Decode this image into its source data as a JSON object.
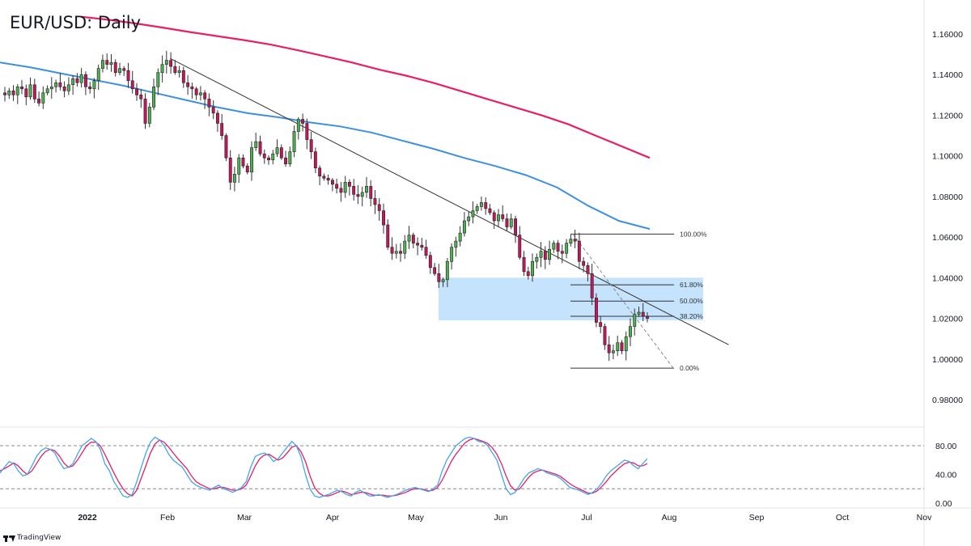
{
  "header": {
    "title": "EUR/USD: Daily"
  },
  "footer": {
    "brand": "TradingView"
  },
  "colors": {
    "bull": "#4caf50",
    "bear": "#c2185b",
    "ma_fast": "#3d8fe0",
    "ma_slow": "#e91e63",
    "zone": "#bbdefb",
    "stoch_k": "#42a5f5",
    "stoch_d": "#e91e63",
    "trendline": "#333333"
  },
  "chart_data": {
    "type": "candlestick",
    "symbol": "EUR/USD",
    "timeframe": "Daily",
    "ylim": [
      0.9775,
      1.1685
    ],
    "price_axis_ticks": [
      "1.16000",
      "1.14000",
      "1.12000",
      "1.10000",
      "1.08000",
      "1.06000",
      "1.04000",
      "1.02000",
      "1.00000",
      "0.98000"
    ],
    "x_axis_labels": [
      "2022",
      "Feb",
      "Mar",
      "Apr",
      "May",
      "Jun",
      "Jul",
      "Aug",
      "Sep",
      "Oct",
      "Nov"
    ],
    "closes": [
      1.13,
      1.132,
      1.13,
      1.134,
      1.133,
      1.129,
      1.135,
      1.128,
      1.126,
      1.131,
      1.133,
      1.134,
      1.136,
      1.134,
      1.132,
      1.135,
      1.138,
      1.136,
      1.14,
      1.134,
      1.133,
      1.137,
      1.143,
      1.147,
      1.145,
      1.146,
      1.141,
      1.143,
      1.142,
      1.137,
      1.133,
      1.13,
      1.128,
      1.116,
      1.124,
      1.134,
      1.141,
      1.145,
      1.147,
      1.144,
      1.141,
      1.142,
      1.136,
      1.134,
      1.133,
      1.13,
      1.131,
      1.128,
      1.124,
      1.121,
      1.116,
      1.11,
      1.099,
      1.087,
      1.091,
      1.099,
      1.095,
      1.092,
      1.104,
      1.107,
      1.101,
      1.099,
      1.098,
      1.101,
      1.104,
      1.099,
      1.096,
      1.102,
      1.112,
      1.118,
      1.116,
      1.108,
      1.102,
      1.094,
      1.09,
      1.089,
      1.088,
      1.086,
      1.084,
      1.082,
      1.087,
      1.085,
      1.081,
      1.08,
      1.082,
      1.085,
      1.079,
      1.076,
      1.073,
      1.066,
      1.055,
      1.052,
      1.053,
      1.052,
      1.058,
      1.061,
      1.057,
      1.056,
      1.055,
      1.051,
      1.045,
      1.042,
      1.038,
      1.039,
      1.048,
      1.055,
      1.058,
      1.062,
      1.068,
      1.07,
      1.073,
      1.075,
      1.077,
      1.074,
      1.072,
      1.068,
      1.071,
      1.069,
      1.065,
      1.069,
      1.061,
      1.05,
      1.043,
      1.041,
      1.048,
      1.05,
      1.053,
      1.049,
      1.054,
      1.057,
      1.053,
      1.052,
      1.057,
      1.059,
      1.058,
      1.048,
      1.046,
      1.042,
      1.03,
      1.018,
      1.016,
      1.007,
      1.003,
      1.004,
      1.008,
      1.004,
      1.011,
      1.016,
      1.022,
      1.023,
      1.021,
      1.02
    ],
    "ma_fast": {
      "name": "",
      "values": [
        1.146,
        1.1435,
        1.1405,
        1.1375,
        1.1345,
        1.131,
        1.1275,
        1.124,
        1.121,
        1.119,
        1.1165,
        1.1145,
        1.1115,
        1.1075,
        1.1035,
        1.099,
        1.095,
        1.0905,
        1.0845,
        1.0755,
        1.068,
        1.064
      ]
    },
    "ma_slow": {
      "name": "",
      "values": [
        1.1685,
        1.167,
        1.1652,
        1.1632,
        1.161,
        1.159,
        1.157,
        1.1548,
        1.152,
        1.149,
        1.146,
        1.1425,
        1.1395,
        1.136,
        1.132,
        1.128,
        1.124,
        1.12,
        1.1155,
        1.11,
        1.1045,
        1.099
      ]
    },
    "trendline": {
      "from": {
        "x_label": "Feb",
        "offset_days": 1,
        "y": 1.148
      },
      "to": {
        "x_label": "Aug",
        "offset_days": 23,
        "y": 1.007
      }
    },
    "demand_zone": {
      "ymin": 1.019,
      "ymax": 1.04
    },
    "fibonacci": {
      "levels": [
        {
          "label": "100.00%",
          "value": 1.0615
        },
        {
          "label": "61.80%",
          "value": 1.0365
        },
        {
          "label": "50.00%",
          "value": 1.0285
        },
        {
          "label": "38.20%",
          "value": 1.021
        },
        {
          "label": "0.00%",
          "value": 0.9955
        }
      ]
    },
    "stochastic": {
      "ticks": [
        "80.00",
        "40.00",
        "0.00"
      ],
      "overbought": 80,
      "oversold": 20,
      "k": [
        42,
        50,
        58,
        55,
        45,
        38,
        40,
        52,
        65,
        73,
        77,
        75,
        70,
        58,
        48,
        50,
        55,
        68,
        80,
        85,
        90,
        86,
        75,
        55,
        45,
        30,
        20,
        10,
        8,
        12,
        30,
        50,
        70,
        85,
        92,
        88,
        80,
        68,
        60,
        55,
        50,
        40,
        30,
        25,
        22,
        20,
        18,
        22,
        25,
        20,
        18,
        15,
        18,
        22,
        30,
        50,
        65,
        68,
        70,
        66,
        58,
        62,
        70,
        78,
        86,
        80,
        65,
        40,
        20,
        10,
        8,
        10,
        12,
        15,
        18,
        16,
        12,
        10,
        15,
        18,
        14,
        10,
        10,
        12,
        10,
        8,
        10,
        12,
        15,
        18,
        20,
        22,
        20,
        18,
        16,
        20,
        25,
        45,
        60,
        70,
        80,
        85,
        90,
        92,
        90,
        86,
        85,
        80,
        70,
        60,
        40,
        20,
        12,
        15,
        25,
        35,
        42,
        45,
        48,
        46,
        42,
        40,
        38,
        34,
        28,
        22,
        20,
        18,
        15,
        12,
        15,
        20,
        28,
        38,
        45,
        50,
        55,
        60,
        58,
        52,
        48,
        55,
        62
      ],
      "d": [
        45,
        48,
        52,
        56,
        52,
        45,
        40,
        45,
        55,
        65,
        72,
        75,
        73,
        66,
        56,
        50,
        52,
        60,
        70,
        80,
        85,
        85,
        80,
        68,
        55,
        42,
        30,
        20,
        13,
        10,
        18,
        35,
        52,
        70,
        82,
        88,
        85,
        78,
        70,
        62,
        55,
        48,
        38,
        30,
        26,
        23,
        20,
        20,
        22,
        22,
        20,
        18,
        18,
        20,
        25,
        38,
        52,
        62,
        67,
        68,
        64,
        60,
        63,
        70,
        78,
        80,
        72,
        58,
        38,
        22,
        14,
        10,
        10,
        12,
        15,
        17,
        15,
        12,
        13,
        15,
        15,
        13,
        11,
        11,
        11,
        10,
        10,
        11,
        13,
        15,
        18,
        20,
        20,
        19,
        17,
        18,
        22,
        32,
        45,
        58,
        68,
        76,
        84,
        88,
        90,
        88,
        86,
        83,
        77,
        68,
        55,
        38,
        24,
        18,
        20,
        28,
        36,
        42,
        45,
        46,
        44,
        42,
        40,
        37,
        32,
        27,
        23,
        20,
        17,
        14,
        14,
        17,
        23,
        30,
        38,
        44,
        50,
        55,
        57,
        56,
        52,
        52,
        55
      ]
    }
  }
}
